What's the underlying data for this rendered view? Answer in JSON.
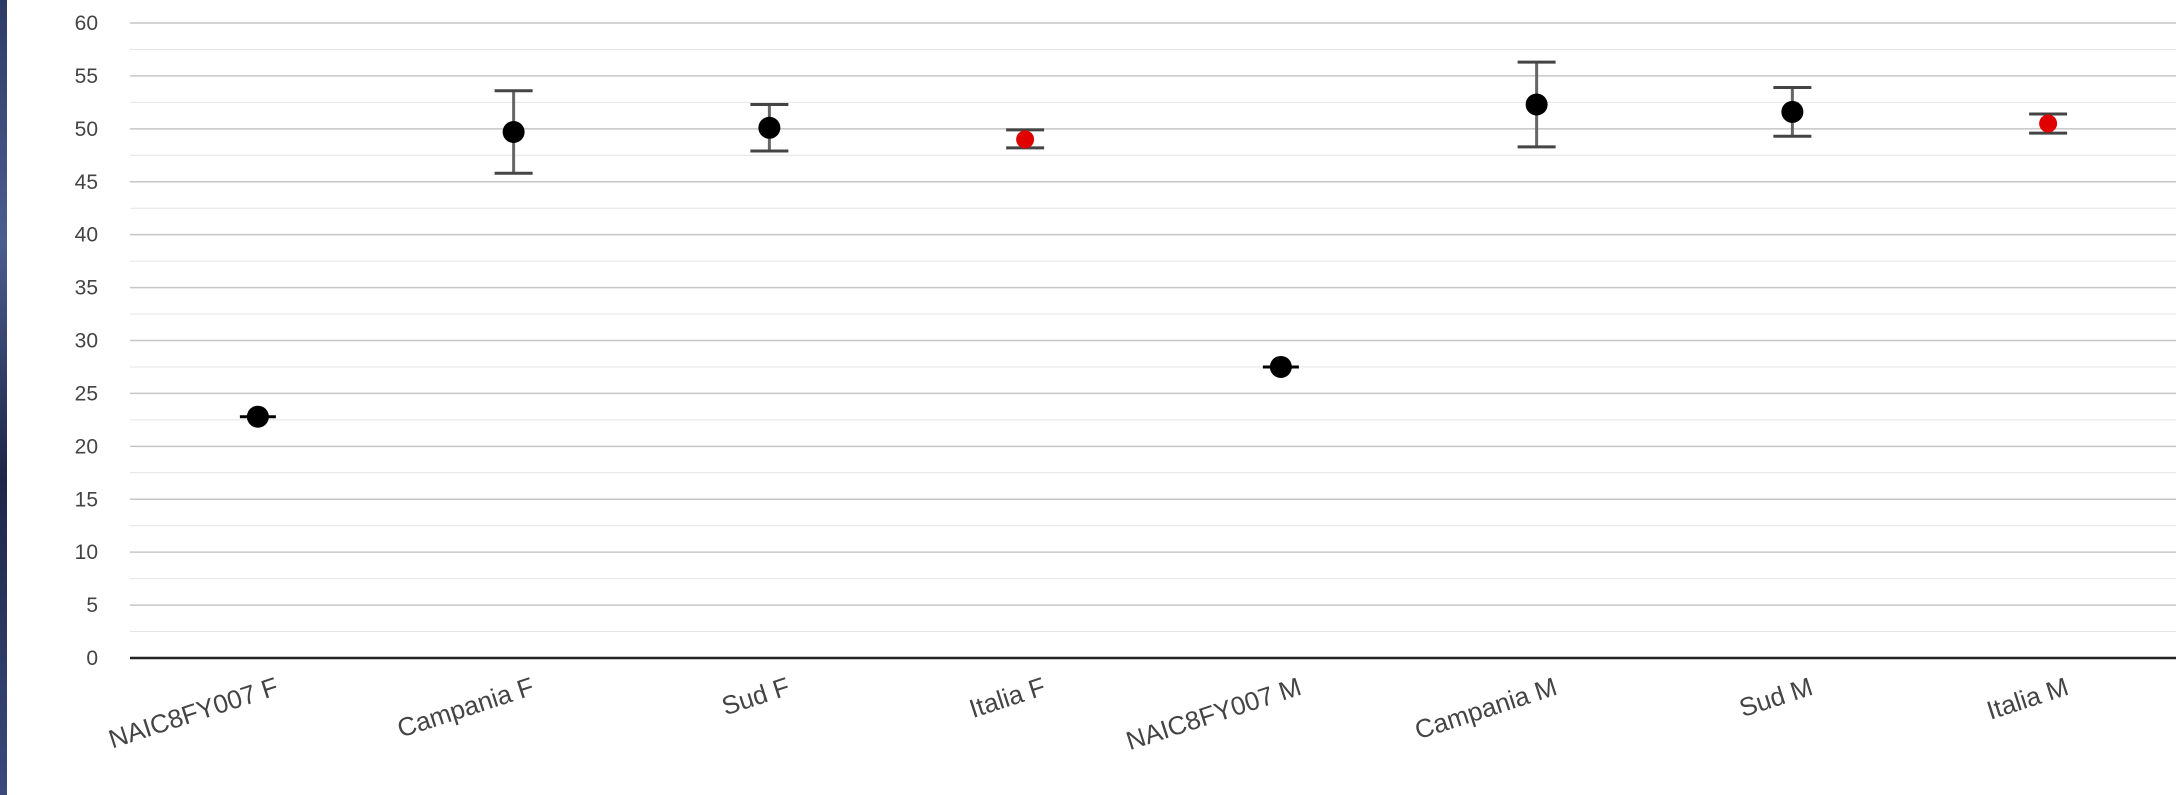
{
  "chart_data": {
    "type": "scatter",
    "categories": [
      "NAIC8FY007 F",
      "Campania F",
      "Sud F",
      "Italia F",
      "NAIC8FY007 M",
      "Campania M",
      "Sud M",
      "Italia M"
    ],
    "values": [
      22.8,
      49.7,
      50.1,
      49.0,
      27.5,
      52.3,
      51.6,
      50.5
    ],
    "error_low": [
      null,
      45.8,
      47.9,
      48.2,
      null,
      48.3,
      49.3,
      49.6
    ],
    "error_high": [
      null,
      53.6,
      52.3,
      49.9,
      null,
      56.3,
      53.9,
      51.4
    ],
    "point_colors": [
      "#000000",
      "#000000",
      "#000000",
      "#e00000",
      "#000000",
      "#000000",
      "#000000",
      "#e00000"
    ],
    "ylim": [
      0,
      60
    ],
    "yticks": [
      "0",
      "5",
      "10",
      "15",
      "20",
      "25",
      "30",
      "35",
      "40",
      "45",
      "50",
      "55",
      "60"
    ],
    "title": "",
    "xlabel": "",
    "ylabel": "",
    "grid": true,
    "legend": "none"
  }
}
